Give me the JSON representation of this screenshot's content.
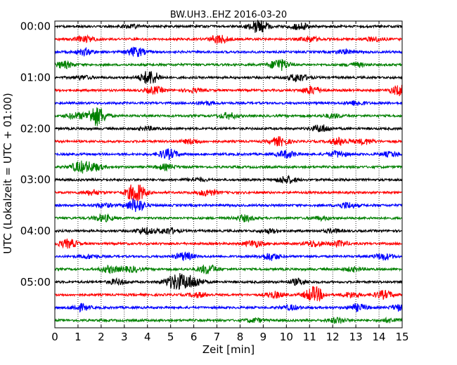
{
  "chart_data": {
    "type": "line",
    "subtype": "helicorder",
    "title": "BW.UH3..EHZ 2016-03-20",
    "xlabel": "Zeit  [min]",
    "ylabel": "UTC (Lokalzeit = UTC + 01:00)",
    "xlim": [
      0,
      15
    ],
    "x_ticks": [
      "0",
      "1",
      "2",
      "3",
      "4",
      "5",
      "6",
      "7",
      "8",
      "9",
      "10",
      "11",
      "12",
      "13",
      "14",
      "15"
    ],
    "y_ticks": [
      "00:00",
      "01:00",
      "02:00",
      "03:00",
      "04:00",
      "05:00"
    ],
    "grid": {
      "x": "dotted-vertical",
      "y": false
    },
    "colors": [
      "#000000",
      "#ff0000",
      "#0000ff",
      "#008000"
    ],
    "trace_minutes": 15,
    "traces": [
      {
        "start": "00:00",
        "color": "#000000",
        "bursts": [
          [
            8.8,
            2.2
          ],
          [
            10.6,
            1.0
          ],
          [
            3.3,
            0.5
          ]
        ]
      },
      {
        "start": "00:15",
        "color": "#ff0000",
        "bursts": [
          [
            1.3,
            1.0
          ],
          [
            7.1,
            1.3
          ],
          [
            11.0,
            0.8
          ],
          [
            13.8,
            0.6
          ]
        ]
      },
      {
        "start": "00:30",
        "color": "#0000ff",
        "bursts": [
          [
            3.5,
            1.4
          ],
          [
            1.3,
            0.9
          ],
          [
            12.5,
            0.6
          ]
        ]
      },
      {
        "start": "00:45",
        "color": "#008000",
        "bursts": [
          [
            0.4,
            1.0
          ],
          [
            9.7,
            1.8
          ],
          [
            13.0,
            0.6
          ]
        ]
      },
      {
        "start": "01:00",
        "color": "#000000",
        "bursts": [
          [
            4.1,
            2.2
          ],
          [
            10.5,
            1.2
          ],
          [
            1.2,
            0.5
          ]
        ]
      },
      {
        "start": "01:15",
        "color": "#ff0000",
        "bursts": [
          [
            4.3,
            1.0
          ],
          [
            11.1,
            1.2
          ],
          [
            14.9,
            1.5
          ],
          [
            6.0,
            0.5
          ]
        ]
      },
      {
        "start": "01:30",
        "color": "#0000ff",
        "bursts": [
          [
            13.0,
            0.7
          ],
          [
            6.5,
            0.5
          ]
        ]
      },
      {
        "start": "01:45",
        "color": "#008000",
        "bursts": [
          [
            1.8,
            3.0
          ],
          [
            0.9,
            0.9
          ],
          [
            7.5,
            0.9
          ],
          [
            12.0,
            0.6
          ]
        ]
      },
      {
        "start": "02:00",
        "color": "#000000",
        "bursts": [
          [
            11.5,
            1.1
          ],
          [
            4.0,
            0.5
          ]
        ]
      },
      {
        "start": "02:15",
        "color": "#ff0000",
        "bursts": [
          [
            9.7,
            1.3
          ],
          [
            12.3,
            1.1
          ],
          [
            13.4,
            0.8
          ],
          [
            5.9,
            0.7
          ]
        ]
      },
      {
        "start": "02:30",
        "color": "#0000ff",
        "bursts": [
          [
            4.9,
            1.5
          ],
          [
            10.0,
            1.1
          ],
          [
            12.2,
            0.9
          ],
          [
            14.5,
            0.7
          ]
        ]
      },
      {
        "start": "02:45",
        "color": "#008000",
        "bursts": [
          [
            1.1,
            1.6
          ],
          [
            1.7,
            1.1
          ],
          [
            4.8,
            0.8
          ]
        ]
      },
      {
        "start": "03:00",
        "color": "#000000",
        "bursts": [
          [
            10.0,
            1.1
          ],
          [
            6.1,
            0.5
          ]
        ]
      },
      {
        "start": "03:15",
        "color": "#ff0000",
        "bursts": [
          [
            3.5,
            3.0
          ],
          [
            6.6,
            1.0
          ],
          [
            1.6,
            0.7
          ]
        ]
      },
      {
        "start": "03:30",
        "color": "#0000ff",
        "bursts": [
          [
            3.5,
            2.0
          ],
          [
            12.6,
            0.9
          ],
          [
            2.1,
            0.6
          ]
        ]
      },
      {
        "start": "03:45",
        "color": "#008000",
        "bursts": [
          [
            2.1,
            1.0
          ],
          [
            8.2,
            0.9
          ],
          [
            11.5,
            0.5
          ]
        ]
      },
      {
        "start": "04:00",
        "color": "#000000",
        "bursts": [
          [
            3.9,
            1.0
          ],
          [
            4.9,
            0.9
          ],
          [
            9.3,
            0.6
          ],
          [
            12.0,
            0.5
          ]
        ]
      },
      {
        "start": "04:15",
        "color": "#ff0000",
        "bursts": [
          [
            0.6,
            1.3
          ],
          [
            8.6,
            1.0
          ],
          [
            11.2,
            0.9
          ],
          [
            12.3,
            0.8
          ]
        ]
      },
      {
        "start": "04:30",
        "color": "#0000ff",
        "bursts": [
          [
            5.6,
            1.2
          ],
          [
            9.3,
            1.1
          ],
          [
            14.2,
            1.0
          ],
          [
            1.5,
            0.6
          ]
        ]
      },
      {
        "start": "04:45",
        "color": "#008000",
        "bursts": [
          [
            6.6,
            1.4
          ],
          [
            2.4,
            1.0
          ],
          [
            3.3,
            0.8
          ],
          [
            12.9,
            0.6
          ]
        ]
      },
      {
        "start": "05:00",
        "color": "#000000",
        "bursts": [
          [
            5.4,
            2.0
          ],
          [
            6.0,
            1.6
          ],
          [
            5.0,
            1.0
          ],
          [
            10.5,
            0.9
          ],
          [
            2.7,
            0.8
          ]
        ]
      },
      {
        "start": "05:15",
        "color": "#ff0000",
        "bursts": [
          [
            11.2,
            2.4
          ],
          [
            14.2,
            1.2
          ],
          [
            9.5,
            0.9
          ],
          [
            12.8,
            0.8
          ],
          [
            6.2,
            0.7
          ]
        ]
      },
      {
        "start": "05:30",
        "color": "#0000ff",
        "bursts": [
          [
            1.1,
            1.0
          ],
          [
            13.1,
            1.0
          ],
          [
            10.2,
            0.7
          ],
          [
            14.9,
            0.9
          ]
        ]
      },
      {
        "start": "05:45",
        "color": "#008000",
        "bursts": [
          [
            12.2,
            0.8
          ],
          [
            8.6,
            0.6
          ],
          [
            14.5,
            0.6
          ]
        ]
      }
    ]
  }
}
